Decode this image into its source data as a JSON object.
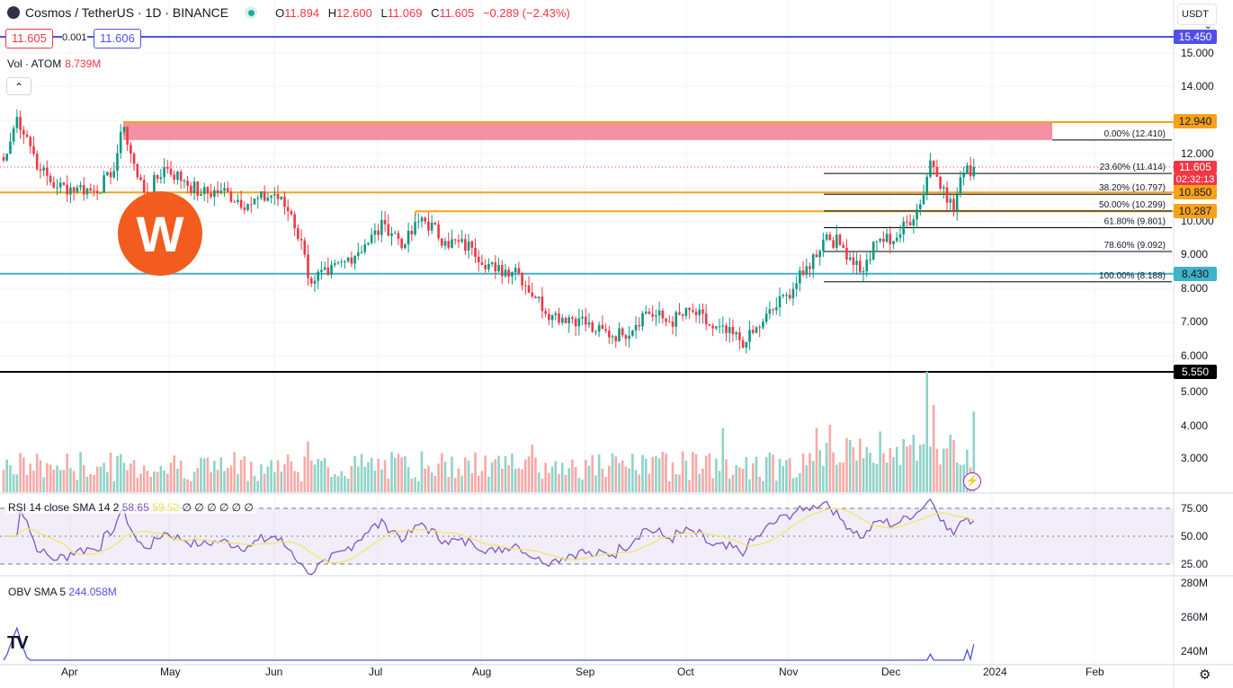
{
  "header": {
    "symbol": "Cosmos / TetherUS · 1D · BINANCE",
    "open_label": "O",
    "open": "11.894",
    "high_label": "H",
    "high": "12.600",
    "low_label": "L",
    "low": "11.069",
    "close_label": "C",
    "close": "11.605",
    "change": "−0.289 (−2.43%)"
  },
  "quote": {
    "bid": "11.605",
    "spread": "0.001",
    "ask": "11.606"
  },
  "volume": {
    "label": "Vol · ATOM",
    "value": "8.739M"
  },
  "currency": "USDT",
  "price_axis": [
    "15.000",
    "14.000",
    "12.000",
    "10.000",
    "9.000",
    "8.000",
    "7.000",
    "6.000"
  ],
  "volume_axis": [
    "5.000",
    "4.000",
    "3.000"
  ],
  "rsi_axis": [
    "75.00",
    "50.00",
    "25.00"
  ],
  "obv_axis": [
    "280M",
    "260M",
    "240M"
  ],
  "price_labels": {
    "blue_line": "15.450",
    "resist": "12.940",
    "last_price": "11.605",
    "countdown": "02:32:13",
    "level1": "10.850",
    "level2": "10.287",
    "support": "8.430",
    "low_line": "5.550"
  },
  "fib": [
    {
      "label": "0.00% (12.410)",
      "price": 12.41
    },
    {
      "label": "23.60% (11.414)",
      "price": 11.414
    },
    {
      "label": "38.20% (10.797)",
      "price": 10.797
    },
    {
      "label": "50.00% (10.299)",
      "price": 10.299
    },
    {
      "label": "61.80% (9.801)",
      "price": 9.801
    },
    {
      "label": "78.60% (9.092)",
      "price": 9.092
    },
    {
      "label": "100.00% (8.188)",
      "price": 8.188
    }
  ],
  "rsi": {
    "label": "RSI 14 close SMA 14 2",
    "value": "58.65",
    "sma": "59.52",
    "extra": "∅ ∅ ∅ ∅ ∅ ∅"
  },
  "obv": {
    "label": "OBV SMA 5",
    "value": "244.058M"
  },
  "time_axis": [
    "Apr",
    "May",
    "Jun",
    "Jul",
    "Aug",
    "Sep",
    "Oct",
    "Nov",
    "Dec",
    "2024",
    "Feb"
  ],
  "logo_text": "W",
  "colors": {
    "up": "#089981",
    "down": "#f23645",
    "orange": "#f7a21b",
    "blue": "#5050e6",
    "teal": "#3fb3c7"
  },
  "chart_data": {
    "type": "candlestick",
    "start": "2023-03-09",
    "close_keypoints": [
      [
        0,
        11.8
      ],
      [
        1,
        12.0
      ],
      [
        4,
        13.1
      ],
      [
        7,
        12.5
      ],
      [
        11,
        11.5
      ],
      [
        16,
        11.0
      ],
      [
        22,
        11.0
      ],
      [
        27,
        10.9
      ],
      [
        32,
        11.3
      ],
      [
        36,
        12.8
      ],
      [
        40,
        11.3
      ],
      [
        43,
        10.8
      ],
      [
        48,
        11.6
      ],
      [
        54,
        11.2
      ],
      [
        59,
        10.8
      ],
      [
        65,
        10.9
      ],
      [
        73,
        10.5
      ],
      [
        81,
        10.8
      ],
      [
        86,
        10.2
      ],
      [
        90,
        9.0
      ],
      [
        91,
        8.3
      ],
      [
        97,
        8.4
      ],
      [
        102,
        8.8
      ],
      [
        108,
        9.3
      ],
      [
        114,
        9.9
      ],
      [
        120,
        9.3
      ],
      [
        125,
        10.1
      ],
      [
        132,
        9.4
      ],
      [
        140,
        9.2
      ],
      [
        147,
        8.5
      ],
      [
        153,
        8.6
      ],
      [
        159,
        7.7
      ],
      [
        164,
        7.2
      ],
      [
        172,
        7.1
      ],
      [
        177,
        6.7
      ],
      [
        185,
        6.6
      ],
      [
        192,
        7.3
      ],
      [
        199,
        7.0
      ],
      [
        206,
        7.3
      ],
      [
        212,
        6.8
      ],
      [
        222,
        6.4
      ],
      [
        227,
        7.0
      ],
      [
        234,
        7.8
      ],
      [
        239,
        8.4
      ],
      [
        246,
        9.6
      ],
      [
        251,
        9.2
      ],
      [
        257,
        8.5
      ],
      [
        261,
        9.4
      ],
      [
        267,
        9.5
      ],
      [
        274,
        10.5
      ],
      [
        277,
        11.8
      ],
      [
        281,
        11.0
      ],
      [
        284,
        10.3
      ],
      [
        286,
        11.3
      ],
      [
        290,
        11.605
      ]
    ],
    "volume_spikes_M": [
      [
        91,
        3.5
      ],
      [
        125,
        3.2
      ],
      [
        158,
        3.4
      ],
      [
        203,
        3.2
      ],
      [
        215,
        3.9
      ],
      [
        243,
        3.9
      ],
      [
        247,
        4.0
      ],
      [
        252,
        3.6
      ],
      [
        262,
        3.8
      ],
      [
        272,
        3.7
      ],
      [
        276,
        5.6
      ],
      [
        278,
        4.6
      ],
      [
        283,
        3.7
      ],
      [
        290,
        4.4
      ]
    ],
    "ylim": [
      5.5,
      15.6
    ]
  }
}
